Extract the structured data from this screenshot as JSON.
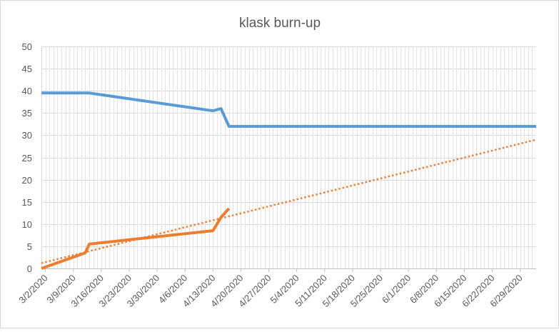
{
  "chart_data": {
    "type": "line",
    "title": "klask burn-up",
    "xlabel": "",
    "ylabel": "",
    "ylim": [
      0,
      50
    ],
    "yticks": [
      "0",
      "5",
      "10",
      "15",
      "20",
      "25",
      "30",
      "35",
      "40",
      "45",
      "50"
    ],
    "xlim": [
      "2020-03-01",
      "2020-07-03"
    ],
    "x_tick_labels": [
      "3/2/2020",
      "3/9/2020",
      "3/16/2020",
      "3/23/2020",
      "3/30/2020",
      "4/6/2020",
      "4/13/2020",
      "4/20/2020",
      "4/27/2020",
      "5/4/2020",
      "5/11/2020",
      "5/18/2020",
      "5/25/2020",
      "6/1/2020",
      "6/8/2020",
      "6/15/2020",
      "6/22/2020",
      "6/29/2020"
    ],
    "x_tick_dates": [
      "2020-03-02",
      "2020-03-09",
      "2020-03-16",
      "2020-03-23",
      "2020-03-30",
      "2020-04-06",
      "2020-04-13",
      "2020-04-20",
      "2020-04-27",
      "2020-05-04",
      "2020-05-11",
      "2020-05-18",
      "2020-05-25",
      "2020-06-01",
      "2020-06-08",
      "2020-06-15",
      "2020-06-22",
      "2020-06-29"
    ],
    "grid": true,
    "legend": "none",
    "series": [
      {
        "color": "#5b9bd5",
        "style": "solid",
        "points": [
          {
            "x": "2020-03-01",
            "y": 39.5
          },
          {
            "x": "2020-03-13",
            "y": 39.5
          },
          {
            "x": "2020-04-13",
            "y": 35.5
          },
          {
            "x": "2020-04-15",
            "y": 36
          },
          {
            "x": "2020-04-17",
            "y": 32
          },
          {
            "x": "2020-07-03",
            "y": 32
          }
        ]
      },
      {
        "color": "#ed7d31",
        "style": "solid",
        "points": [
          {
            "x": "2020-03-01",
            "y": 0
          },
          {
            "x": "2020-03-12",
            "y": 3.5
          },
          {
            "x": "2020-03-13",
            "y": 5.5
          },
          {
            "x": "2020-04-13",
            "y": 8.5
          },
          {
            "x": "2020-04-15",
            "y": 11.5
          },
          {
            "x": "2020-04-17",
            "y": 13.5
          }
        ]
      },
      {
        "color": "#ed7d31",
        "style": "dotted",
        "points": [
          {
            "x": "2020-03-01",
            "y": 1.2
          },
          {
            "x": "2020-07-03",
            "y": 29
          }
        ]
      }
    ]
  }
}
